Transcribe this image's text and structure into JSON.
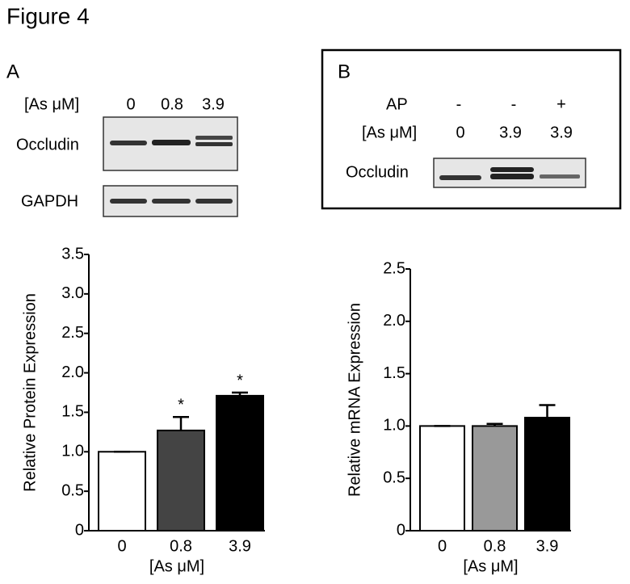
{
  "figure_title": "Figure 4",
  "panel_a": {
    "label": "A",
    "blot": {
      "conc_label": "[As μM]",
      "lanes": [
        "0",
        "0.8",
        "3.9"
      ],
      "rows": [
        "Occludin",
        "GAPDH"
      ]
    }
  },
  "panel_b": {
    "label": "B",
    "blot": {
      "ap_label": "AP",
      "ap": [
        "-",
        "-",
        "+"
      ],
      "conc_label": "[As μM]",
      "lanes": [
        "0",
        "3.9",
        "3.9"
      ],
      "row": "Occludin"
    }
  },
  "chart_data": [
    {
      "type": "bar",
      "y_label": "Relative Protein Expression",
      "x_label": "[As μM]",
      "categories": [
        "0",
        "0.8",
        "3.9"
      ],
      "values": [
        1.0,
        1.27,
        1.71
      ],
      "errors": [
        0,
        0.17,
        0.04
      ],
      "colors": [
        "#ffffff",
        "#444444",
        "#000000"
      ],
      "significance": [
        null,
        "*",
        "*"
      ],
      "ylim": [
        0,
        3.5
      ],
      "yticks": [
        0,
        0.5,
        {
          "value": 1,
          "label": "1.0"
        },
        1.5,
        {
          "value": 2,
          "label": "2.0"
        },
        2.5,
        {
          "value": 3,
          "label": "3.0"
        },
        3.5
      ]
    },
    {
      "type": "bar",
      "y_label": "Relative mRNA Expression",
      "x_label": "[As μM]",
      "categories": [
        "0",
        "0.8",
        "3.9"
      ],
      "values": [
        1.0,
        1.0,
        1.08
      ],
      "errors": [
        0,
        0.02,
        0.12
      ],
      "colors": [
        "#ffffff",
        "#999999",
        "#000000"
      ],
      "ylim": [
        0,
        2.5
      ],
      "yticks": [
        0,
        0.5,
        {
          "value": 1,
          "label": "1.0"
        },
        1.5,
        {
          "value": 2,
          "label": "2.0"
        },
        2.5
      ]
    }
  ]
}
